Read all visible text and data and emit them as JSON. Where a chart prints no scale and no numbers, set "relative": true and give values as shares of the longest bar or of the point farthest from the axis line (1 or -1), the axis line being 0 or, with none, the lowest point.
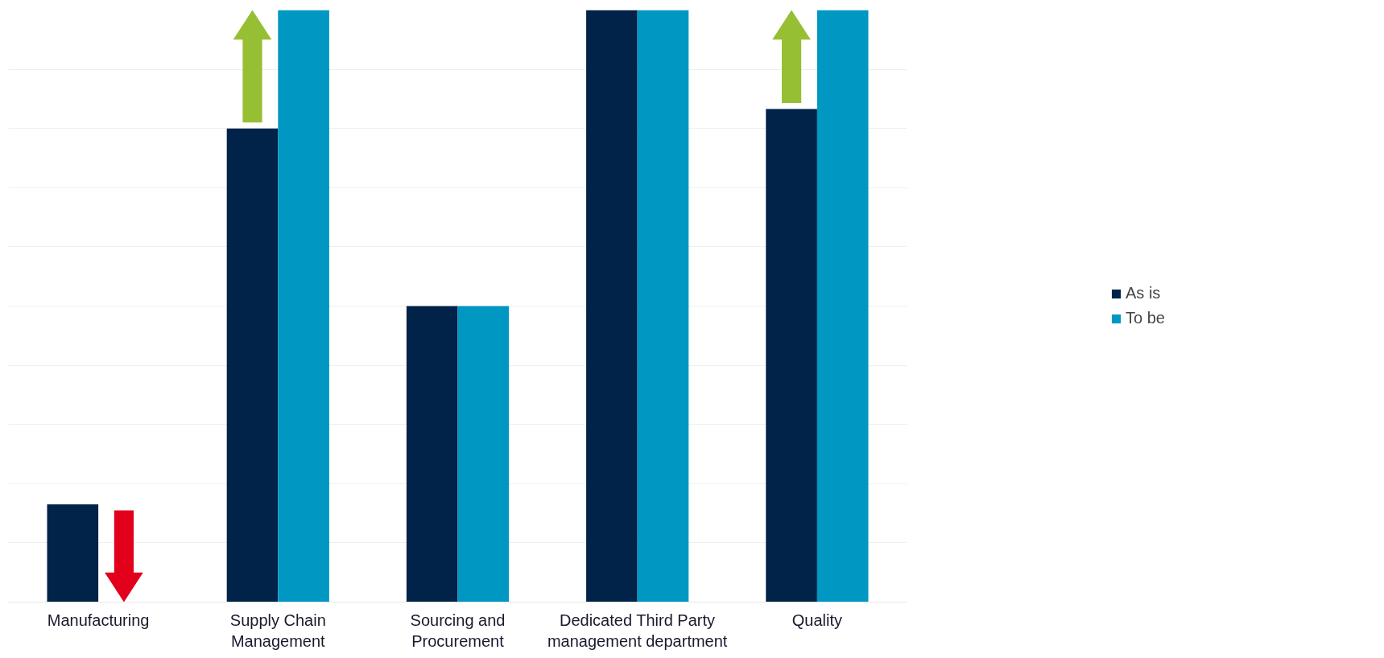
{
  "chart_data": {
    "type": "bar",
    "relative": true,
    "categories": [
      "Manufacturing",
      "Supply Chain Management",
      "Sourcing and Procurement",
      "Dedicated Third Party management department",
      "Quality"
    ],
    "series": [
      {
        "name": "As is",
        "color": "#012249",
        "values": [
          0.165,
          0.8,
          0.5,
          1,
          0.833
        ]
      },
      {
        "name": "To be",
        "color": "#0097c3",
        "values": [
          0,
          1,
          0.5,
          1,
          1
        ]
      }
    ],
    "grid": "y",
    "legend": "right"
  }
}
